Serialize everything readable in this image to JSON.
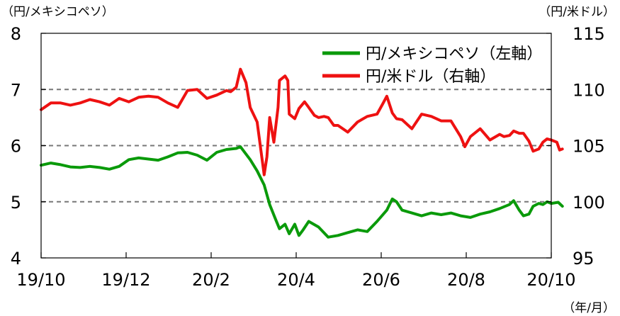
{
  "chart_data": {
    "type": "line",
    "left_unit": "（円/メキシコペソ）",
    "right_unit": "（円/米ドル）",
    "x_unit": "（年/月）",
    "x_ticks": [
      "19/10",
      "19/12",
      "20/2",
      "20/4",
      "20/6",
      "20/8",
      "20/10"
    ],
    "y_left": {
      "ticks": [
        "4",
        "5",
        "6",
        "7",
        "8"
      ],
      "range": [
        4,
        8
      ]
    },
    "y_right": {
      "ticks": [
        "95",
        "100",
        "105",
        "110",
        "115"
      ],
      "range": [
        95,
        115
      ]
    },
    "gridlines_left": [
      5,
      6,
      7
    ],
    "legend": {
      "position": "top-right"
    },
    "colors": {
      "mxn": "#0a9a0a",
      "usd": "#ee1111",
      "grid": "#777777",
      "axis": "#000000"
    },
    "series": [
      {
        "name": "円/メキシコペソ（左軸）",
        "axis": "left",
        "color": "#0a9a0a",
        "points": [
          [
            "2019-10-01",
            5.65
          ],
          [
            "2019-10-08",
            5.69
          ],
          [
            "2019-10-15",
            5.66
          ],
          [
            "2019-10-22",
            5.62
          ],
          [
            "2019-10-29",
            5.61
          ],
          [
            "2019-11-05",
            5.63
          ],
          [
            "2019-11-12",
            5.61
          ],
          [
            "2019-11-19",
            5.58
          ],
          [
            "2019-11-26",
            5.63
          ],
          [
            "2019-12-03",
            5.75
          ],
          [
            "2019-12-10",
            5.78
          ],
          [
            "2019-12-17",
            5.76
          ],
          [
            "2019-12-24",
            5.74
          ],
          [
            "2019-12-31",
            5.8
          ],
          [
            "2020-01-07",
            5.87
          ],
          [
            "2020-01-14",
            5.88
          ],
          [
            "2020-01-21",
            5.83
          ],
          [
            "2020-01-28",
            5.74
          ],
          [
            "2020-02-04",
            5.88
          ],
          [
            "2020-02-11",
            5.93
          ],
          [
            "2020-02-18",
            5.95
          ],
          [
            "2020-02-21",
            5.98
          ],
          [
            "2020-02-28",
            5.75
          ],
          [
            "2020-03-04",
            5.55
          ],
          [
            "2020-03-09",
            5.3
          ],
          [
            "2020-03-13",
            4.95
          ],
          [
            "2020-03-17",
            4.7
          ],
          [
            "2020-03-20",
            4.52
          ],
          [
            "2020-03-24",
            4.6
          ],
          [
            "2020-03-27",
            4.43
          ],
          [
            "2020-03-31",
            4.6
          ],
          [
            "2020-04-03",
            4.4
          ],
          [
            "2020-04-06",
            4.5
          ],
          [
            "2020-04-10",
            4.65
          ],
          [
            "2020-04-17",
            4.55
          ],
          [
            "2020-04-24",
            4.37
          ],
          [
            "2020-05-01",
            4.4
          ],
          [
            "2020-05-08",
            4.45
          ],
          [
            "2020-05-15",
            4.5
          ],
          [
            "2020-05-22",
            4.47
          ],
          [
            "2020-05-29",
            4.65
          ],
          [
            "2020-06-05",
            4.85
          ],
          [
            "2020-06-09",
            5.05
          ],
          [
            "2020-06-12",
            5.0
          ],
          [
            "2020-06-16",
            4.85
          ],
          [
            "2020-06-23",
            4.8
          ],
          [
            "2020-06-30",
            4.75
          ],
          [
            "2020-07-07",
            4.8
          ],
          [
            "2020-07-14",
            4.77
          ],
          [
            "2020-07-21",
            4.8
          ],
          [
            "2020-07-28",
            4.75
          ],
          [
            "2020-08-04",
            4.72
          ],
          [
            "2020-08-11",
            4.78
          ],
          [
            "2020-08-18",
            4.82
          ],
          [
            "2020-08-25",
            4.88
          ],
          [
            "2020-09-01",
            4.95
          ],
          [
            "2020-09-04",
            5.02
          ],
          [
            "2020-09-08",
            4.85
          ],
          [
            "2020-09-11",
            4.75
          ],
          [
            "2020-09-15",
            4.78
          ],
          [
            "2020-09-18",
            4.92
          ],
          [
            "2020-09-22",
            4.97
          ],
          [
            "2020-09-25",
            4.95
          ],
          [
            "2020-09-28",
            5.0
          ],
          [
            "2020-10-01",
            4.97
          ],
          [
            "2020-10-06",
            4.99
          ],
          [
            "2020-10-09",
            4.92
          ]
        ]
      },
      {
        "name": "円/米ドル（右軸）",
        "axis": "right",
        "color": "#ee1111",
        "points": [
          [
            "2019-10-01",
            108.2
          ],
          [
            "2019-10-08",
            108.8
          ],
          [
            "2019-10-15",
            108.8
          ],
          [
            "2019-10-22",
            108.6
          ],
          [
            "2019-10-29",
            108.8
          ],
          [
            "2019-11-05",
            109.1
          ],
          [
            "2019-11-12",
            108.9
          ],
          [
            "2019-11-19",
            108.6
          ],
          [
            "2019-11-26",
            109.2
          ],
          [
            "2019-12-03",
            108.9
          ],
          [
            "2019-12-10",
            109.3
          ],
          [
            "2019-12-17",
            109.4
          ],
          [
            "2019-12-24",
            109.3
          ],
          [
            "2019-12-31",
            108.8
          ],
          [
            "2020-01-07",
            108.4
          ],
          [
            "2020-01-14",
            109.9
          ],
          [
            "2020-01-21",
            110.0
          ],
          [
            "2020-01-28",
            109.2
          ],
          [
            "2020-02-04",
            109.5
          ],
          [
            "2020-02-11",
            109.9
          ],
          [
            "2020-02-14",
            109.8
          ],
          [
            "2020-02-18",
            110.2
          ],
          [
            "2020-02-21",
            111.8
          ],
          [
            "2020-02-25",
            110.6
          ],
          [
            "2020-02-28",
            108.4
          ],
          [
            "2020-03-04",
            107.1
          ],
          [
            "2020-03-06",
            105.2
          ],
          [
            "2020-03-09",
            102.4
          ],
          [
            "2020-03-11",
            104.0
          ],
          [
            "2020-03-13",
            107.5
          ],
          [
            "2020-03-16",
            105.3
          ],
          [
            "2020-03-19",
            108.4
          ],
          [
            "2020-03-20",
            110.8
          ],
          [
            "2020-03-24",
            111.2
          ],
          [
            "2020-03-26",
            110.8
          ],
          [
            "2020-03-27",
            107.8
          ],
          [
            "2020-03-31",
            107.4
          ],
          [
            "2020-04-03",
            108.3
          ],
          [
            "2020-04-07",
            108.9
          ],
          [
            "2020-04-10",
            108.4
          ],
          [
            "2020-04-14",
            107.7
          ],
          [
            "2020-04-17",
            107.5
          ],
          [
            "2020-04-21",
            107.6
          ],
          [
            "2020-04-24",
            107.5
          ],
          [
            "2020-04-28",
            106.8
          ],
          [
            "2020-05-01",
            106.8
          ],
          [
            "2020-05-08",
            106.2
          ],
          [
            "2020-05-15",
            107.1
          ],
          [
            "2020-05-22",
            107.6
          ],
          [
            "2020-05-29",
            107.8
          ],
          [
            "2020-06-02",
            108.7
          ],
          [
            "2020-06-05",
            109.4
          ],
          [
            "2020-06-09",
            107.9
          ],
          [
            "2020-06-12",
            107.4
          ],
          [
            "2020-06-16",
            107.3
          ],
          [
            "2020-06-23",
            106.5
          ],
          [
            "2020-06-30",
            107.8
          ],
          [
            "2020-07-07",
            107.6
          ],
          [
            "2020-07-14",
            107.2
          ],
          [
            "2020-07-21",
            107.2
          ],
          [
            "2020-07-28",
            105.8
          ],
          [
            "2020-07-31",
            104.9
          ],
          [
            "2020-08-04",
            105.8
          ],
          [
            "2020-08-11",
            106.5
          ],
          [
            "2020-08-18",
            105.5
          ],
          [
            "2020-08-25",
            106.0
          ],
          [
            "2020-08-28",
            105.8
          ],
          [
            "2020-09-01",
            105.9
          ],
          [
            "2020-09-04",
            106.3
          ],
          [
            "2020-09-08",
            106.1
          ],
          [
            "2020-09-11",
            106.1
          ],
          [
            "2020-09-15",
            105.4
          ],
          [
            "2020-09-18",
            104.5
          ],
          [
            "2020-09-22",
            104.7
          ],
          [
            "2020-09-25",
            105.3
          ],
          [
            "2020-09-28",
            105.6
          ],
          [
            "2020-10-01",
            105.5
          ],
          [
            "2020-10-05",
            105.3
          ],
          [
            "2020-10-07",
            104.6
          ],
          [
            "2020-10-09",
            104.7
          ]
        ]
      }
    ]
  }
}
